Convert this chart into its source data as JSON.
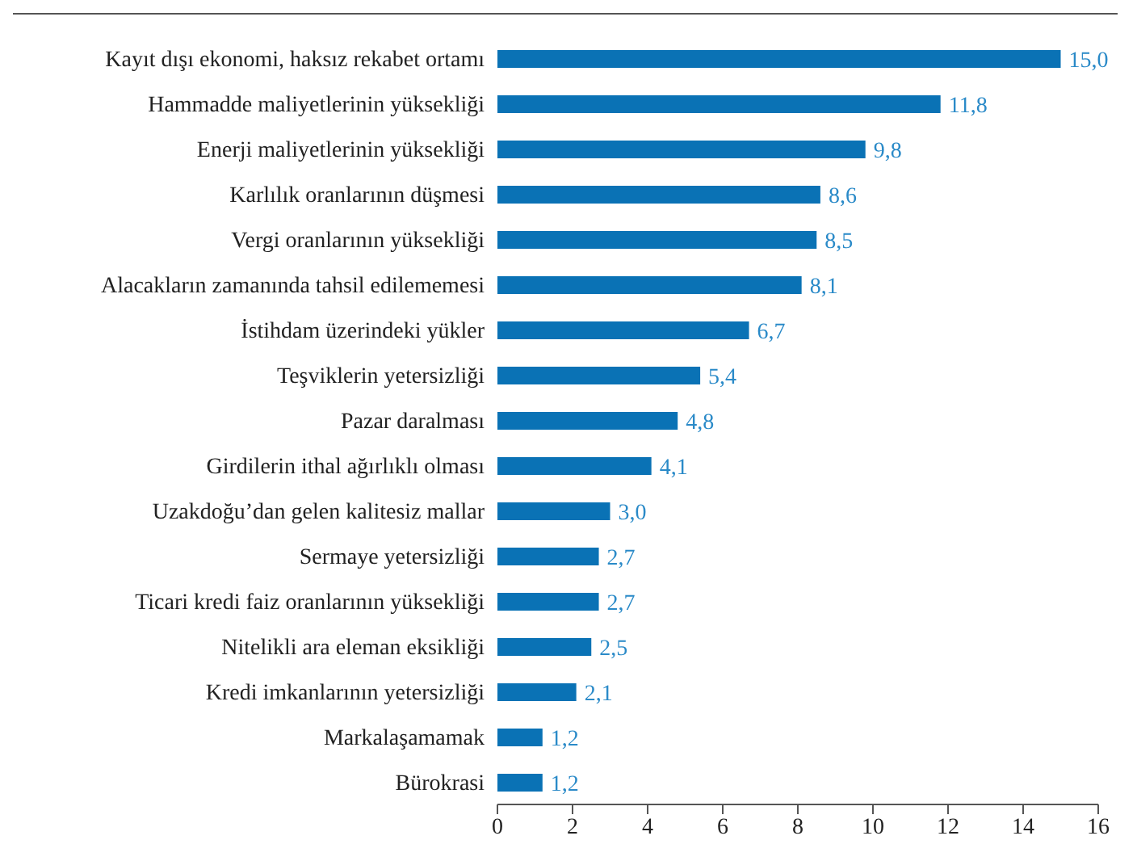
{
  "chart_data": {
    "type": "bar",
    "orientation": "horizontal",
    "categories": [
      "Kayıt dışı ekonomi, haksız rekabet ortamı",
      "Hammadde maliyetlerinin yüksekliği",
      "Enerji maliyetlerinin yüksekliği",
      "Karlılık oranlarının düşmesi",
      "Vergi oranlarının yüksekliği",
      "Alacakların zamanında tahsil edilememesi",
      "İstihdam üzerindeki yükler",
      "Teşviklerin yetersizliği",
      "Pazar daralması",
      "Girdilerin ithal ağırlıklı olması",
      "Uzakdoğu’dan gelen kalitesiz mallar",
      "Sermaye yetersizliği",
      "Ticari kredi faiz oranlarının yüksekliği",
      "Nitelikli ara eleman eksikliği",
      "Kredi imkanlarının yetersizliği",
      "Markalaşamamak",
      "Bürokrasi"
    ],
    "values": [
      15.0,
      11.8,
      9.8,
      8.6,
      8.5,
      8.1,
      6.7,
      5.4,
      4.8,
      4.1,
      3.0,
      2.7,
      2.7,
      2.5,
      2.1,
      1.2,
      1.2
    ],
    "value_labels": [
      "15,0",
      "11,8",
      "9,8",
      "8,6",
      "8,5",
      "8,1",
      "6,7",
      "5,4",
      "4,8",
      "4,1",
      "3,0",
      "2,7",
      "2,7",
      "2,5",
      "2,1",
      "1,2",
      "1,2"
    ],
    "color": "#0a72b5",
    "xlim": [
      0,
      16
    ],
    "xticks": [
      0,
      2,
      4,
      6,
      8,
      10,
      12,
      14,
      16
    ]
  }
}
